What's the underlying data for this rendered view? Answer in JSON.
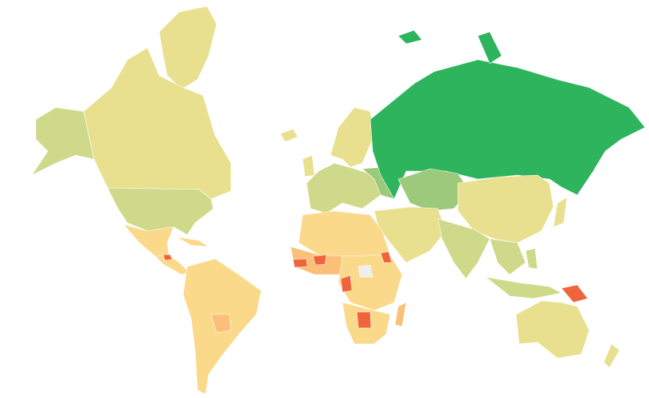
{
  "map": {
    "type": "choropleth-world-map",
    "colors": {
      "high": "#2db45d",
      "upper_mid": "#9cc97a",
      "mid": "#cfd98a",
      "neutral": "#e8e08f",
      "lower_mid": "#fbd98a",
      "low": "#fbbf78",
      "lowest": "#f0643c",
      "no_data": "#eeeeee"
    }
  }
}
